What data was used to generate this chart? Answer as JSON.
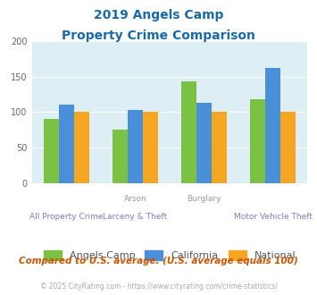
{
  "title_line1": "2019 Angels Camp",
  "title_line2": "Property Crime Comparison",
  "x_labels_top": [
    "",
    "Arson",
    "Burglary",
    ""
  ],
  "x_labels_bottom": [
    "All Property Crime",
    "Larceny & Theft",
    "",
    "Motor Vehicle Theft"
  ],
  "angels_camp": [
    91,
    75,
    143,
    118
  ],
  "california": [
    110,
    103,
    113,
    162
  ],
  "national": [
    100,
    100,
    100,
    100
  ],
  "bar_colors": {
    "angels_camp": "#7bc144",
    "california": "#4a90d9",
    "national": "#f5a623"
  },
  "ylim": [
    0,
    200
  ],
  "yticks": [
    0,
    50,
    100,
    150,
    200
  ],
  "background_color": "#ddeef5",
  "title_color": "#1a6aa8",
  "xlabel_color_top": "#999999",
  "xlabel_color_bottom": "#8877bb",
  "legend_labels": [
    "Angels Camp",
    "California",
    "National"
  ],
  "legend_text_color": "#555555",
  "footer_text": "Compared to U.S. average. (U.S. average equals 100)",
  "copyright_text": "© 2025 CityRating.com - https://www.cityrating.com/crime-statistics/",
  "footer_color": "#cc5500",
  "copyright_color": "#aaaaaa"
}
